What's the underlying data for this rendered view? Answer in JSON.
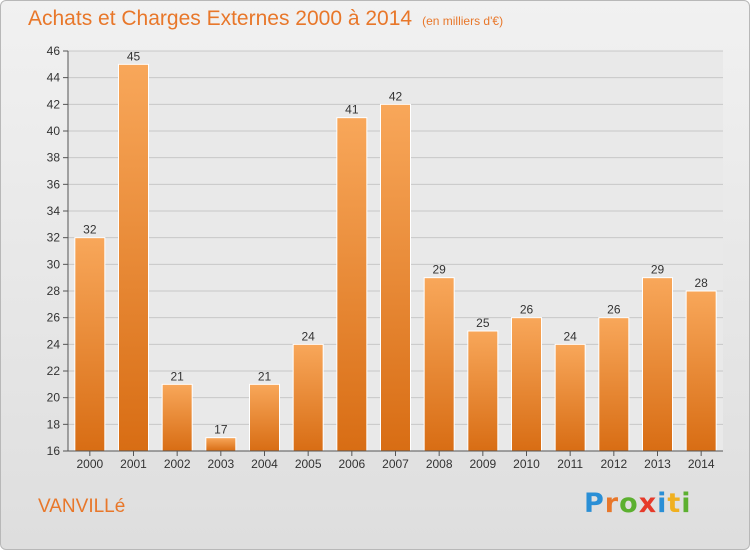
{
  "chart_data": {
    "type": "bar",
    "title": "Achats et Charges Externes 2000 à 2014",
    "subtitle": "(en milliers d'€)",
    "categories": [
      "2000",
      "2001",
      "2002",
      "2003",
      "2004",
      "2005",
      "2006",
      "2007",
      "2008",
      "2009",
      "2010",
      "2011",
      "2012",
      "2013",
      "2014"
    ],
    "values": [
      32,
      45,
      21,
      17,
      21,
      24,
      41,
      42,
      29,
      25,
      26,
      24,
      26,
      29,
      28
    ],
    "ylim": [
      16,
      46
    ],
    "yticks": [
      16,
      18,
      20,
      22,
      24,
      26,
      28,
      30,
      32,
      34,
      36,
      38,
      40,
      42,
      44,
      46
    ],
    "grid": true,
    "bar_color_top": "#f8a75a",
    "bar_color_bottom": "#d86d14"
  },
  "footer": {
    "place": "VANVILLé",
    "logo": {
      "letters": [
        "P",
        "r",
        "o",
        "x",
        "i",
        "t",
        "i"
      ],
      "colors": [
        "#2a8fd6",
        "#e8772a",
        "#5cb030",
        "#e63a2a",
        "#2a8fd6",
        "#f0b020",
        "#5cb030"
      ]
    }
  }
}
